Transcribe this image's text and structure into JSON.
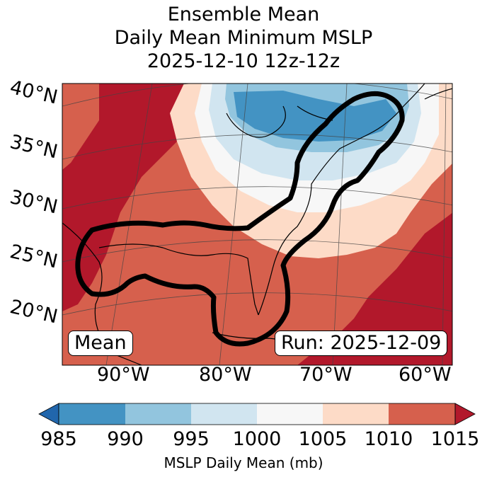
{
  "title": {
    "line1": "Ensemble Mean",
    "line2": "Daily Mean Minimum MSLP",
    "line3": "2025-12-10 12z-12z"
  },
  "map": {
    "lat_labels": [
      "40°N",
      "35°N",
      "30°N",
      "25°N",
      "20°N"
    ],
    "lon_labels": [
      "90°W",
      "80°W",
      "70°W",
      "60°W"
    ],
    "box_left": "Mean",
    "box_right": "Run: 2025-12-09"
  },
  "colorbar": {
    "ticks": [
      "985",
      "990",
      "995",
      "1000",
      "1005",
      "1010",
      "1015"
    ],
    "label": "MSLP Daily Mean (mb)",
    "colors": [
      "#2166ac",
      "#4393c3",
      "#92c5de",
      "#d1e5f0",
      "#f7f7f7",
      "#fddbc7",
      "#d6604d",
      "#b2182b"
    ]
  }
}
